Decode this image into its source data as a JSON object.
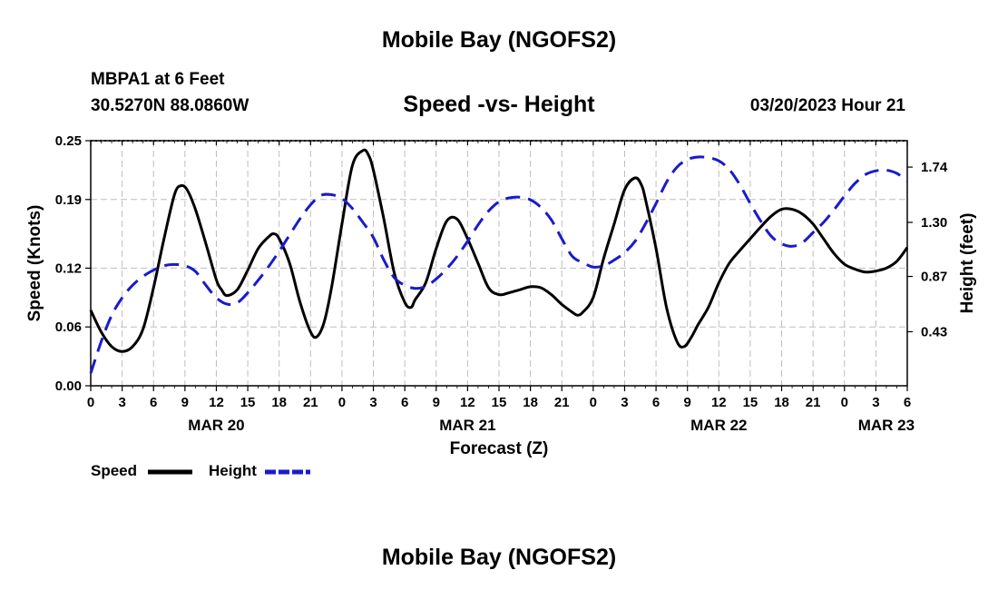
{
  "header": {
    "title": "Mobile Bay (NGOFS2)",
    "station": "MBPA1 at 6 Feet",
    "coordinates": "30.5270N  88.0860W",
    "subtitle": "Speed -vs- Height",
    "datetime": "03/20/2023 Hour 21"
  },
  "footer": {
    "title": "Mobile Bay (NGOFS2)"
  },
  "legend": [
    {
      "label": "Speed",
      "color": "#000000",
      "style": "solid"
    },
    {
      "label": "Height",
      "color": "#1a1acc",
      "style": "dashed"
    }
  ],
  "chart_data": {
    "type": "line",
    "xlabel": "Forecast (Z)",
    "ylabel_left": "Speed (Knots)",
    "ylabel_right": "Height (feet)",
    "x_range_hours": [
      0,
      78
    ],
    "x_ticks": [
      {
        "h": 0,
        "label": "0"
      },
      {
        "h": 3,
        "label": "3"
      },
      {
        "h": 6,
        "label": "6"
      },
      {
        "h": 9,
        "label": "9"
      },
      {
        "h": 12,
        "label": "12"
      },
      {
        "h": 15,
        "label": "15"
      },
      {
        "h": 18,
        "label": "18"
      },
      {
        "h": 21,
        "label": "21"
      },
      {
        "h": 24,
        "label": "0"
      },
      {
        "h": 27,
        "label": "3"
      },
      {
        "h": 30,
        "label": "6"
      },
      {
        "h": 33,
        "label": "9"
      },
      {
        "h": 36,
        "label": "12"
      },
      {
        "h": 39,
        "label": "15"
      },
      {
        "h": 42,
        "label": "18"
      },
      {
        "h": 45,
        "label": "21"
      },
      {
        "h": 48,
        "label": "0"
      },
      {
        "h": 51,
        "label": "3"
      },
      {
        "h": 54,
        "label": "6"
      },
      {
        "h": 57,
        "label": "9"
      },
      {
        "h": 60,
        "label": "12"
      },
      {
        "h": 63,
        "label": "15"
      },
      {
        "h": 66,
        "label": "18"
      },
      {
        "h": 69,
        "label": "21"
      },
      {
        "h": 72,
        "label": "0"
      },
      {
        "h": 75,
        "label": "3"
      },
      {
        "h": 78,
        "label": "6"
      }
    ],
    "date_labels": [
      {
        "h": 12,
        "label": "MAR 20"
      },
      {
        "h": 36,
        "label": "MAR 21"
      },
      {
        "h": 60,
        "label": "MAR 22"
      },
      {
        "h": 76,
        "label": "MAR 23"
      }
    ],
    "y_left": {
      "min": 0,
      "max": 0.25,
      "ticks": [
        0.0,
        0.06,
        0.12,
        0.19,
        0.25
      ],
      "tick_labels": [
        "0.00",
        "0.06",
        "0.12",
        "0.19",
        "0.25"
      ]
    },
    "y_right": {
      "min": 0.0,
      "max": 1.95,
      "ticks": [
        0.43,
        0.87,
        1.3,
        1.74
      ],
      "tick_labels": [
        "0.43",
        "0.87",
        "1.30",
        "1.74"
      ]
    },
    "series": [
      {
        "name": "Speed",
        "axis": "left",
        "points": [
          [
            0,
            0.077
          ],
          [
            1,
            0.055
          ],
          [
            2,
            0.04
          ],
          [
            3,
            0.035
          ],
          [
            4,
            0.04
          ],
          [
            5,
            0.058
          ],
          [
            6,
            0.1
          ],
          [
            7,
            0.15
          ],
          [
            8,
            0.195
          ],
          [
            8.6,
            0.204
          ],
          [
            9.2,
            0.2
          ],
          [
            10,
            0.18
          ],
          [
            11,
            0.145
          ],
          [
            12,
            0.108
          ],
          [
            12.5,
            0.098
          ],
          [
            13,
            0.092
          ],
          [
            14,
            0.098
          ],
          [
            15,
            0.118
          ],
          [
            16,
            0.14
          ],
          [
            17,
            0.152
          ],
          [
            17.5,
            0.155
          ],
          [
            18,
            0.15
          ],
          [
            19,
            0.125
          ],
          [
            20,
            0.085
          ],
          [
            21,
            0.055
          ],
          [
            21.6,
            0.05
          ],
          [
            22.3,
            0.065
          ],
          [
            23,
            0.1
          ],
          [
            24,
            0.165
          ],
          [
            25,
            0.225
          ],
          [
            26,
            0.24
          ],
          [
            26.5,
            0.236
          ],
          [
            27,
            0.22
          ],
          [
            28,
            0.17
          ],
          [
            29,
            0.115
          ],
          [
            30,
            0.085
          ],
          [
            30.6,
            0.08
          ],
          [
            31,
            0.088
          ],
          [
            32,
            0.105
          ],
          [
            33,
            0.14
          ],
          [
            34,
            0.168
          ],
          [
            35,
            0.17
          ],
          [
            36,
            0.15
          ],
          [
            37,
            0.125
          ],
          [
            38,
            0.1
          ],
          [
            39,
            0.093
          ],
          [
            40,
            0.095
          ],
          [
            41,
            0.098
          ],
          [
            42,
            0.101
          ],
          [
            43,
            0.1
          ],
          [
            44,
            0.093
          ],
          [
            45,
            0.083
          ],
          [
            46,
            0.075
          ],
          [
            46.5,
            0.072
          ],
          [
            47,
            0.075
          ],
          [
            48,
            0.09
          ],
          [
            49,
            0.13
          ],
          [
            50,
            0.165
          ],
          [
            51,
            0.2
          ],
          [
            52,
            0.212
          ],
          [
            52.6,
            0.205
          ],
          [
            53,
            0.19
          ],
          [
            54,
            0.14
          ],
          [
            55,
            0.08
          ],
          [
            56,
            0.045
          ],
          [
            56.7,
            0.04
          ],
          [
            57.4,
            0.05
          ],
          [
            58,
            0.062
          ],
          [
            59,
            0.08
          ],
          [
            60,
            0.105
          ],
          [
            61,
            0.125
          ],
          [
            62,
            0.138
          ],
          [
            63,
            0.15
          ],
          [
            64,
            0.162
          ],
          [
            65,
            0.173
          ],
          [
            66,
            0.18
          ],
          [
            67,
            0.18
          ],
          [
            68,
            0.175
          ],
          [
            69,
            0.165
          ],
          [
            70,
            0.15
          ],
          [
            71,
            0.135
          ],
          [
            72,
            0.124
          ],
          [
            73,
            0.119
          ],
          [
            74,
            0.116
          ],
          [
            75,
            0.117
          ],
          [
            76,
            0.12
          ],
          [
            77,
            0.127
          ],
          [
            78,
            0.141
          ]
        ]
      },
      {
        "name": "Height",
        "axis": "right",
        "points": [
          [
            0,
            0.1
          ],
          [
            1,
            0.35
          ],
          [
            2,
            0.56
          ],
          [
            3,
            0.7
          ],
          [
            4,
            0.8
          ],
          [
            5,
            0.87
          ],
          [
            6,
            0.92
          ],
          [
            7,
            0.955
          ],
          [
            8,
            0.965
          ],
          [
            9,
            0.955
          ],
          [
            10,
            0.91
          ],
          [
            11,
            0.8
          ],
          [
            12,
            0.7
          ],
          [
            13,
            0.65
          ],
          [
            14,
            0.66
          ],
          [
            15,
            0.74
          ],
          [
            16,
            0.84
          ],
          [
            17,
            0.95
          ],
          [
            18,
            1.07
          ],
          [
            19,
            1.2
          ],
          [
            20,
            1.33
          ],
          [
            21,
            1.44
          ],
          [
            22,
            1.515
          ],
          [
            23,
            1.52
          ],
          [
            24,
            1.49
          ],
          [
            25,
            1.41
          ],
          [
            26,
            1.3
          ],
          [
            27,
            1.18
          ],
          [
            28,
            1.0
          ],
          [
            29,
            0.86
          ],
          [
            30,
            0.8
          ],
          [
            31,
            0.775
          ],
          [
            32,
            0.79
          ],
          [
            33,
            0.85
          ],
          [
            34,
            0.93
          ],
          [
            35,
            1.03
          ],
          [
            36,
            1.15
          ],
          [
            37,
            1.28
          ],
          [
            38,
            1.39
          ],
          [
            39,
            1.465
          ],
          [
            40,
            1.495
          ],
          [
            41,
            1.5
          ],
          [
            42,
            1.48
          ],
          [
            43,
            1.42
          ],
          [
            44,
            1.32
          ],
          [
            45,
            1.17
          ],
          [
            46,
            1.03
          ],
          [
            47,
            0.98
          ],
          [
            48,
            0.945
          ],
          [
            49,
            0.955
          ],
          [
            50,
            1.0
          ],
          [
            51,
            1.06
          ],
          [
            52,
            1.15
          ],
          [
            53,
            1.29
          ],
          [
            54,
            1.45
          ],
          [
            55,
            1.62
          ],
          [
            56,
            1.74
          ],
          [
            57,
            1.8
          ],
          [
            58,
            1.82
          ],
          [
            59,
            1.815
          ],
          [
            60,
            1.79
          ],
          [
            61,
            1.72
          ],
          [
            62,
            1.6
          ],
          [
            63,
            1.45
          ],
          [
            64,
            1.31
          ],
          [
            65,
            1.19
          ],
          [
            66,
            1.13
          ],
          [
            67,
            1.11
          ],
          [
            68,
            1.14
          ],
          [
            69,
            1.22
          ],
          [
            70,
            1.3
          ],
          [
            71,
            1.4
          ],
          [
            72,
            1.51
          ],
          [
            73,
            1.61
          ],
          [
            74,
            1.68
          ],
          [
            75,
            1.71
          ],
          [
            76,
            1.715
          ],
          [
            77,
            1.69
          ],
          [
            78,
            1.63
          ]
        ]
      }
    ]
  }
}
